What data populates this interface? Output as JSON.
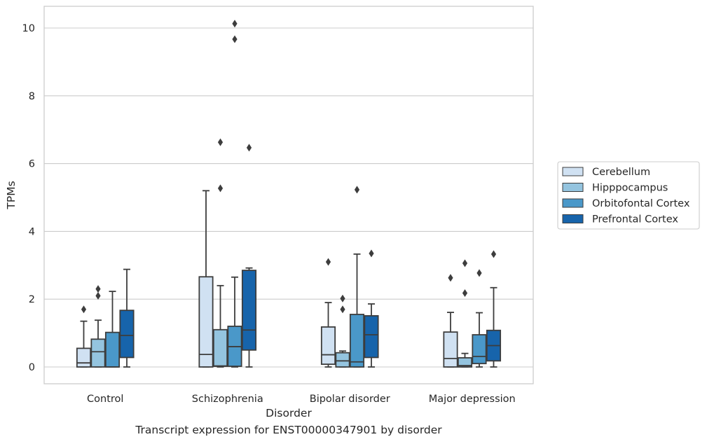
{
  "caption": "Transcript expression for ENST00000347901 by disorder",
  "chart_data": {
    "type": "box",
    "xlabel": "Disorder",
    "ylabel": "TPMs",
    "ylim": [
      -0.48,
      10.65
    ],
    "yticks": [
      0,
      2,
      4,
      6,
      8,
      10
    ],
    "grid": "horizontal",
    "legend_position": "right",
    "categories": [
      "Control",
      "Schizophrenia",
      "Bipolar disorder",
      "Major depression"
    ],
    "series": [
      {
        "name": "Cerebellum",
        "color": "#d0e1f2",
        "boxes": [
          {
            "whisker_low": 0,
            "q1": 0,
            "median": 0.12,
            "q3": 0.55,
            "whisker_high": 1.35,
            "outliers": [
              1.7
            ]
          },
          {
            "whisker_low": 0,
            "q1": 0,
            "median": 0.37,
            "q3": 2.66,
            "whisker_high": 5.2,
            "outliers": []
          },
          {
            "whisker_low": 0,
            "q1": 0.08,
            "median": 0.36,
            "q3": 1.18,
            "whisker_high": 1.9,
            "outliers": [
              3.1
            ]
          },
          {
            "whisker_low": 0,
            "q1": 0,
            "median": 0.25,
            "q3": 1.03,
            "whisker_high": 1.61,
            "outliers": [
              2.63
            ]
          }
        ]
      },
      {
        "name": "Hipppocampus",
        "color": "#94c4df",
        "boxes": [
          {
            "whisker_low": 0,
            "q1": 0,
            "median": 0.45,
            "q3": 0.82,
            "whisker_high": 1.38,
            "outliers": [
              2.1,
              2.3
            ]
          },
          {
            "whisker_low": 0,
            "q1": 0.02,
            "median": 0.03,
            "q3": 1.1,
            "whisker_high": 2.4,
            "outliers": [
              5.27,
              6.63
            ]
          },
          {
            "whisker_low": 0,
            "q1": 0,
            "median": 0.18,
            "q3": 0.42,
            "whisker_high": 0.47,
            "outliers": [
              1.7,
              2.02
            ]
          },
          {
            "whisker_low": 0,
            "q1": 0,
            "median": 0.04,
            "q3": 0.27,
            "whisker_high": 0.4,
            "outliers": [
              2.18,
              3.06
            ]
          }
        ]
      },
      {
        "name": "Orbitofontal Cortex",
        "color": "#4a98c9",
        "boxes": [
          {
            "whisker_low": 0,
            "q1": 0,
            "median": 0.0,
            "q3": 1.02,
            "whisker_high": 2.23,
            "outliers": []
          },
          {
            "whisker_low": 0,
            "q1": 0.02,
            "median": 0.6,
            "q3": 1.2,
            "whisker_high": 2.65,
            "outliers": [
              9.67,
              10.13
            ]
          },
          {
            "whisker_low": 0,
            "q1": 0,
            "median": 0.15,
            "q3": 1.55,
            "whisker_high": 3.33,
            "outliers": [
              5.23
            ]
          },
          {
            "whisker_low": 0,
            "q1": 0.1,
            "median": 0.31,
            "q3": 0.95,
            "whisker_high": 1.6,
            "outliers": [
              2.77
            ]
          }
        ]
      },
      {
        "name": "Prefrontal Cortex",
        "color": "#1764ab",
        "boxes": [
          {
            "whisker_low": 0,
            "q1": 0.28,
            "median": 0.93,
            "q3": 1.67,
            "whisker_high": 2.88,
            "outliers": []
          },
          {
            "whisker_low": 0,
            "q1": 0.5,
            "median": 1.09,
            "q3": 2.85,
            "whisker_high": 2.92,
            "outliers": [
              6.47
            ]
          },
          {
            "whisker_low": 0,
            "q1": 0.28,
            "median": 0.95,
            "q3": 1.51,
            "whisker_high": 1.86,
            "outliers": [
              3.35
            ]
          },
          {
            "whisker_low": 0,
            "q1": 0.18,
            "median": 0.63,
            "q3": 1.08,
            "whisker_high": 2.34,
            "outliers": [
              3.33
            ]
          }
        ]
      }
    ]
  }
}
